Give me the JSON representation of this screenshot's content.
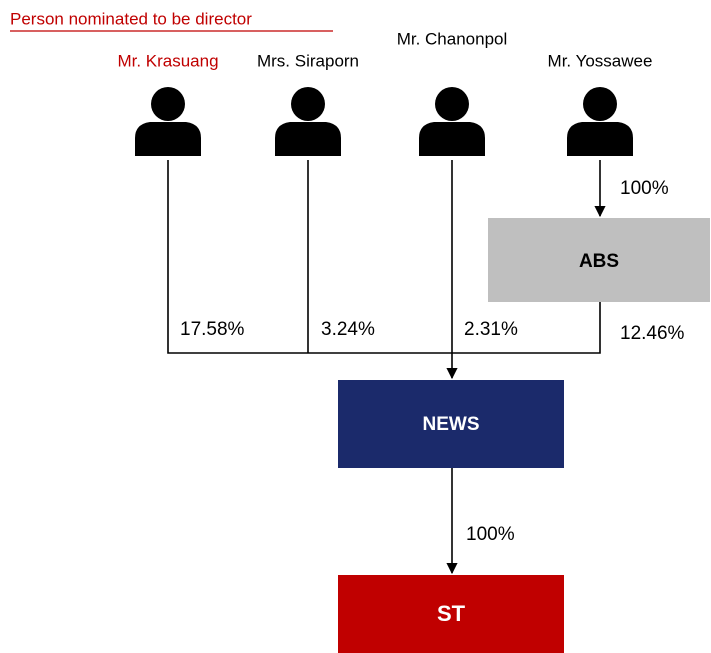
{
  "heading": "Person nominated to be director",
  "persons": [
    {
      "name": "Mr. Krasuang"
    },
    {
      "name": "Mrs. Siraporn"
    },
    {
      "name": "Mr. Chanonpol"
    },
    {
      "name": "Mr. Yossawee"
    }
  ],
  "boxes": [
    {
      "label": "ABS"
    },
    {
      "label": "NEWS"
    },
    {
      "label": "ST"
    }
  ],
  "edges": [
    {
      "from": "Mr. Yossawee",
      "to": "ABS",
      "label": "100%"
    },
    {
      "from": "Mr. Krasuang",
      "to": "NEWS",
      "label": "17.58%"
    },
    {
      "from": "Mrs. Siraporn",
      "to": "NEWS",
      "label": "3.24%"
    },
    {
      "from": "Mr. Chanonpol",
      "to": "NEWS",
      "label": "2.31%"
    },
    {
      "from": "ABS",
      "to": "NEWS",
      "label": "12.46%"
    },
    {
      "from": "NEWS",
      "to": "ST",
      "label": "100%"
    }
  ]
}
